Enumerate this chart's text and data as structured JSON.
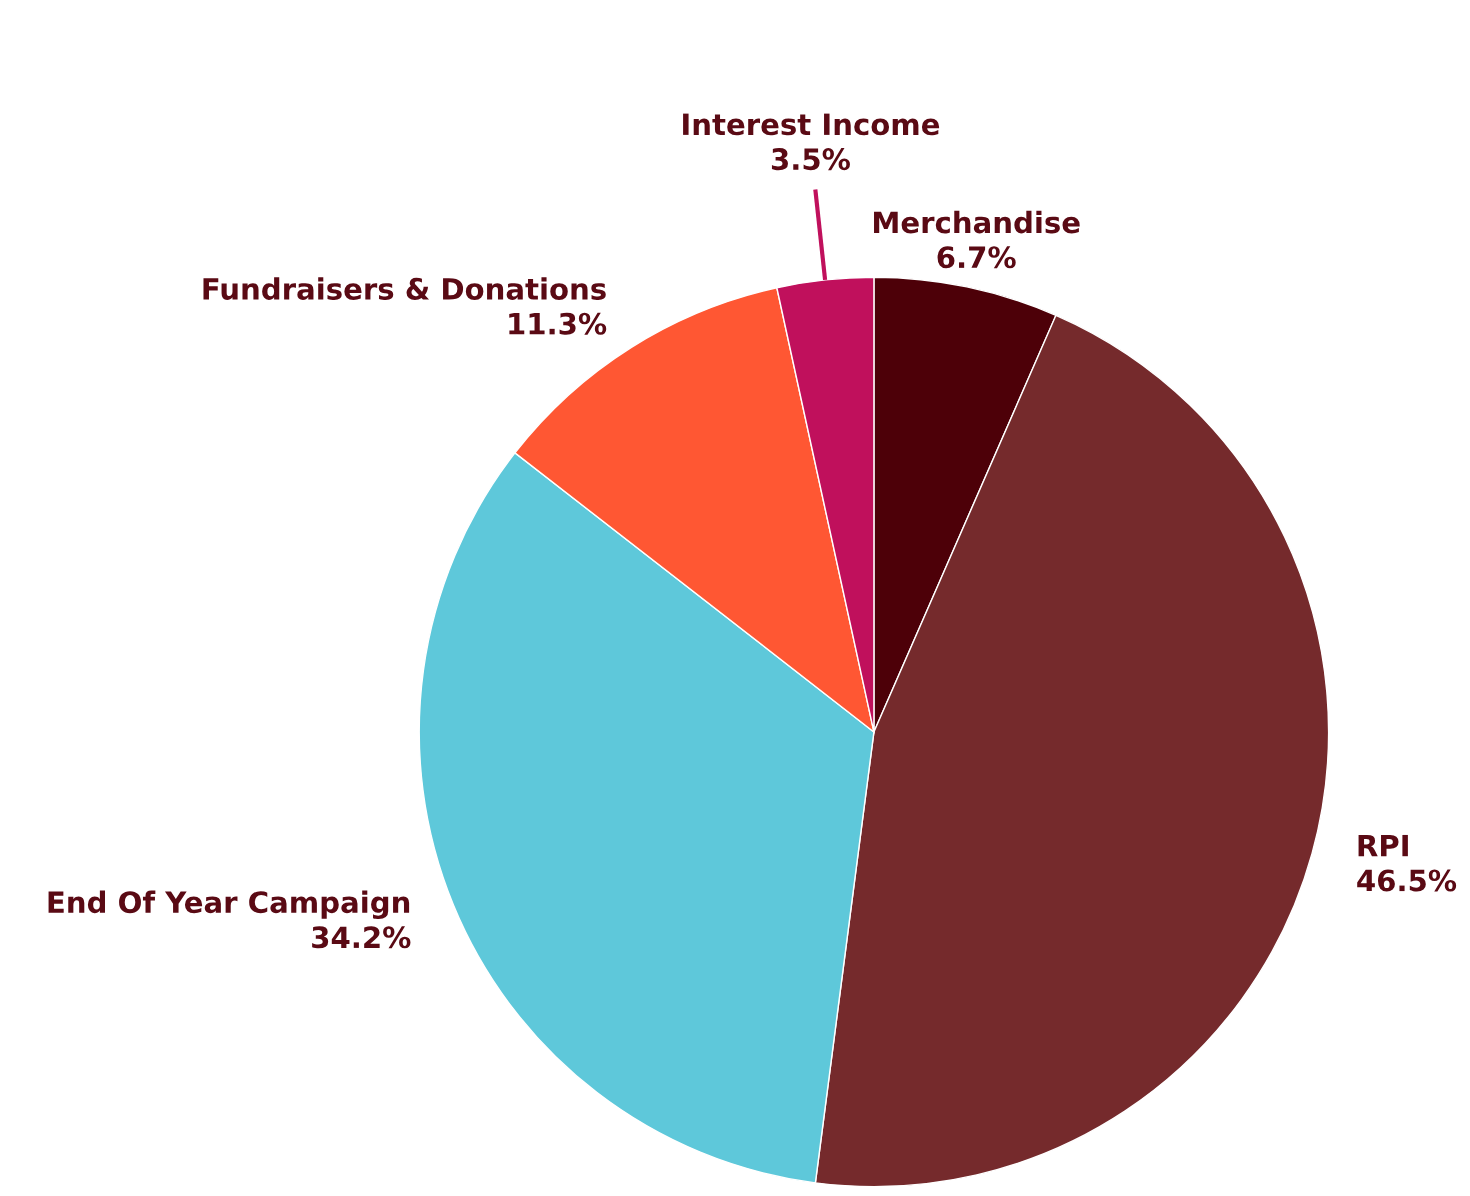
{
  "chart_data": {
    "type": "pie",
    "categories": [
      "Merchandise",
      "RPI",
      "End Of Year Campaign",
      "Fundraisers & Donations",
      "Interest Income"
    ],
    "values": [
      6.7,
      46.5,
      34.2,
      11.3,
      3.5
    ],
    "value_labels": [
      "6.7%",
      "46.5%",
      "34.2%",
      "11.3%",
      "3.5%"
    ],
    "colors": [
      "#4d0008",
      "#752a2c",
      "#5ec8da",
      "#ff5733",
      "#c0105c"
    ]
  }
}
